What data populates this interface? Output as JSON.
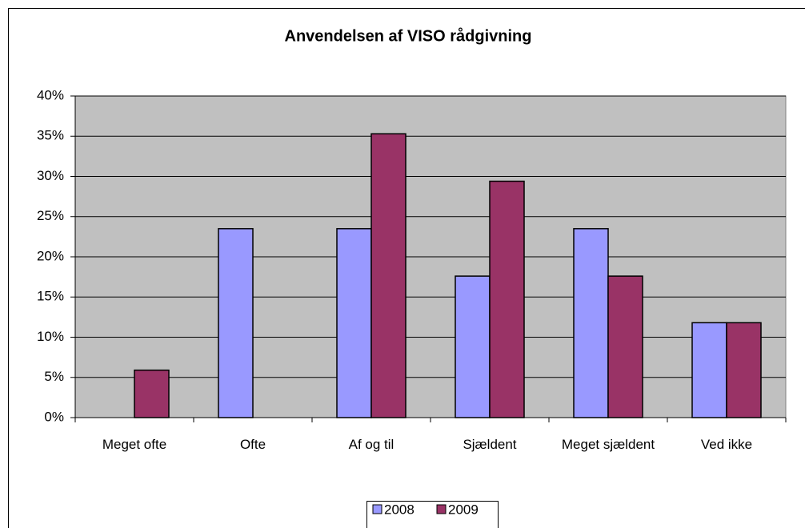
{
  "chart_data": {
    "type": "bar",
    "title": "Anvendelsen af VISO rådgivning",
    "categories": [
      "Meget ofte",
      "Ofte",
      "Af og til",
      "Sjældent",
      "Meget sjældent",
      "Ved ikke"
    ],
    "series": [
      {
        "name": "2008",
        "color": "#9999ff",
        "values": [
          0,
          23.5,
          23.5,
          17.6,
          23.5,
          11.8
        ]
      },
      {
        "name": "2009",
        "color": "#993366",
        "values": [
          5.9,
          0,
          35.3,
          29.4,
          17.6,
          11.8
        ]
      }
    ],
    "ylim": [
      0,
      40
    ],
    "yticks": [
      {
        "value": 0,
        "label": "0%"
      },
      {
        "value": 5,
        "label": "5%"
      },
      {
        "value": 10,
        "label": "10%"
      },
      {
        "value": 15,
        "label": "15%"
      },
      {
        "value": 20,
        "label": "20%"
      },
      {
        "value": 25,
        "label": "25%"
      },
      {
        "value": 30,
        "label": "30%"
      },
      {
        "value": 35,
        "label": "35%"
      },
      {
        "value": 40,
        "label": "40%"
      }
    ],
    "grid": true,
    "legend": "bottom"
  }
}
